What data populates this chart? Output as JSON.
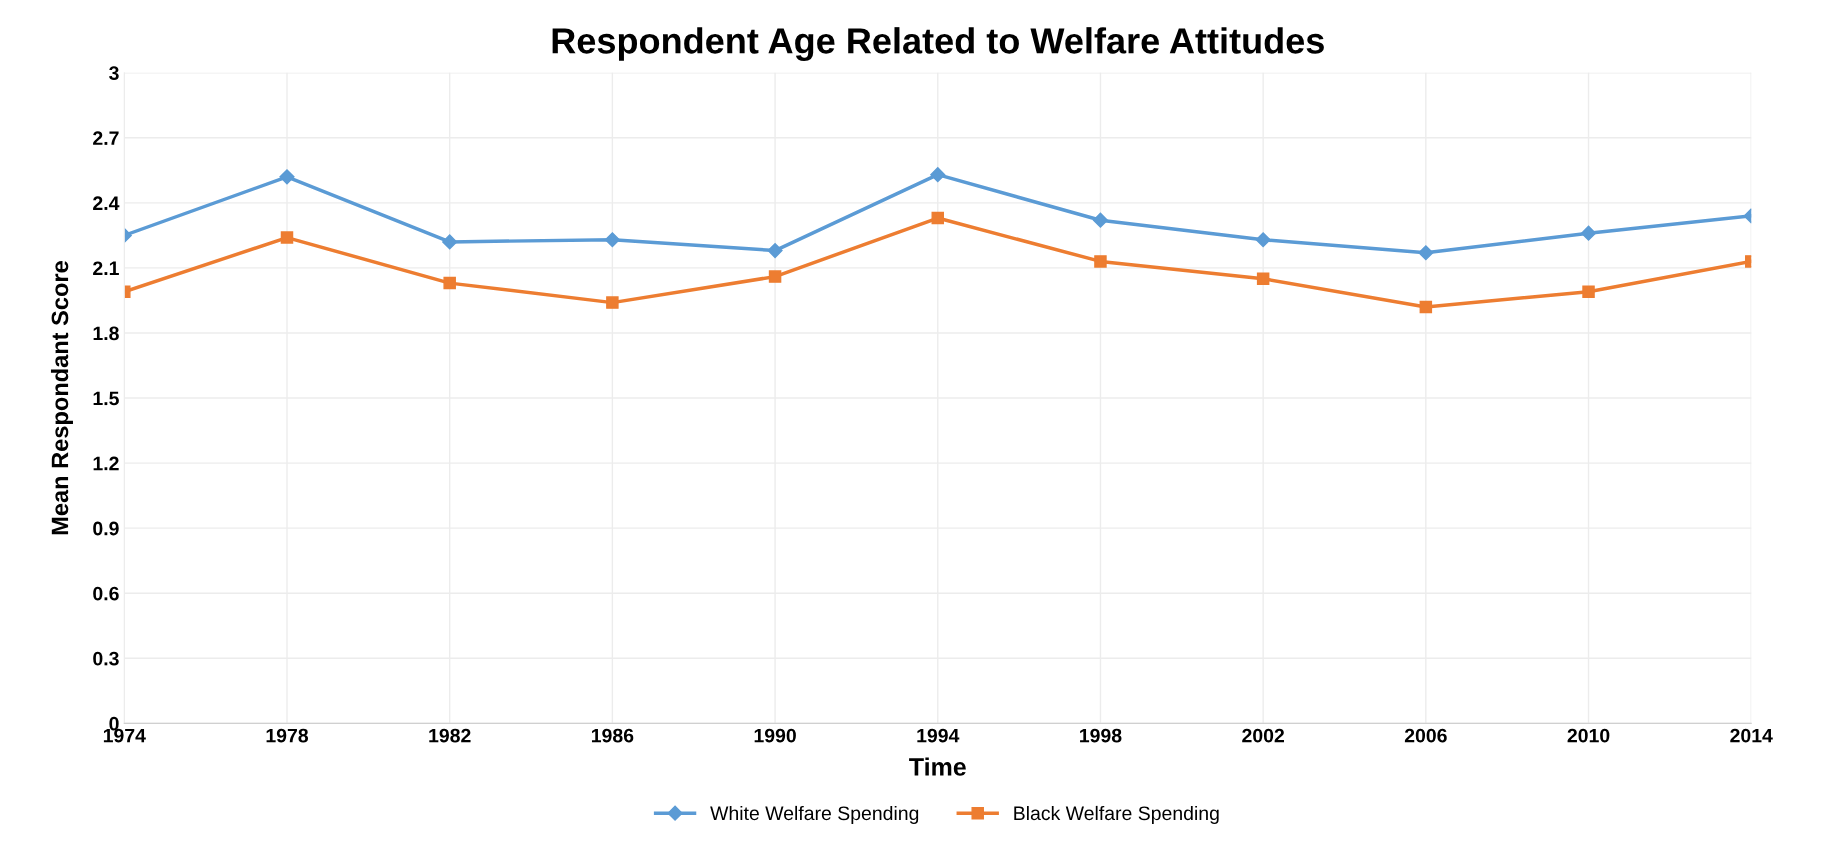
{
  "chart_data": {
    "type": "line",
    "title": "Respondent Age Related to Welfare Attitudes",
    "xlabel": "Time",
    "ylabel": "Mean Respondant Score",
    "x": [
      1974,
      1978,
      1982,
      1986,
      1990,
      1994,
      1998,
      2002,
      2006,
      2010,
      2014
    ],
    "series": [
      {
        "name": "White Welfare Spending",
        "color": "#5b9bd5",
        "marker": "diamond",
        "values": [
          2.25,
          2.52,
          2.22,
          2.23,
          2.18,
          2.53,
          2.32,
          2.23,
          2.17,
          2.26,
          2.34
        ]
      },
      {
        "name": "Black Welfare Spending",
        "color": "#ed7d31",
        "marker": "square",
        "values": [
          1.99,
          2.24,
          2.03,
          1.94,
          2.06,
          2.33,
          2.13,
          2.05,
          1.92,
          1.99,
          2.13
        ]
      }
    ],
    "xlim": [
      1974,
      2014
    ],
    "xticks": [
      1974,
      1978,
      1982,
      1986,
      1990,
      1994,
      1998,
      2002,
      2006,
      2010,
      2014
    ],
    "ylim": [
      0,
      3
    ],
    "yticks": [
      0,
      0.3,
      0.6,
      0.9,
      1.2,
      1.5,
      1.8,
      2.1,
      2.4,
      2.7,
      3
    ],
    "grid": true,
    "legend": "bottom"
  }
}
